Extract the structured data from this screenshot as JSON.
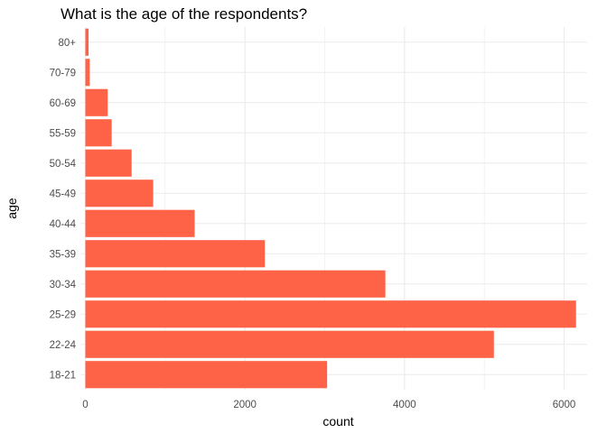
{
  "chart_data": {
    "type": "bar",
    "orientation": "horizontal",
    "title": "What is the age of the respondents?",
    "xlabel": "count",
    "ylabel": "age",
    "categories": [
      "18-21",
      "22-24",
      "25-29",
      "30-34",
      "35-39",
      "40-44",
      "45-49",
      "50-54",
      "55-59",
      "60-69",
      "70-79",
      "80+"
    ],
    "values": [
      3030,
      5120,
      6150,
      3760,
      2250,
      1370,
      850,
      580,
      330,
      280,
      55,
      40
    ],
    "xlim": [
      0,
      6200
    ],
    "xticks": [
      0,
      2000,
      4000,
      6000
    ],
    "xtick_labels": [
      "0",
      "2000",
      "4000",
      "6000"
    ],
    "grid": true,
    "bar_color": "#ff6347",
    "grid_color": "#ebebeb"
  }
}
